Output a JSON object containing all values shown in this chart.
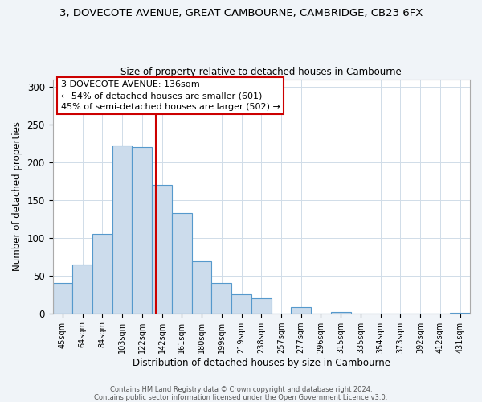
{
  "title_line1": "3, DOVECOTE AVENUE, GREAT CAMBOURNE, CAMBRIDGE, CB23 6FX",
  "title_line2": "Size of property relative to detached houses in Cambourne",
  "bar_labels": [
    "45sqm",
    "64sqm",
    "84sqm",
    "103sqm",
    "122sqm",
    "142sqm",
    "161sqm",
    "180sqm",
    "199sqm",
    "219sqm",
    "238sqm",
    "257sqm",
    "277sqm",
    "296sqm",
    "315sqm",
    "335sqm",
    "354sqm",
    "373sqm",
    "392sqm",
    "412sqm",
    "431sqm"
  ],
  "bar_values": [
    40,
    65,
    105,
    222,
    220,
    170,
    133,
    69,
    40,
    25,
    20,
    0,
    8,
    0,
    2,
    0,
    0,
    0,
    0,
    0,
    1
  ],
  "bar_color": "#ccdcec",
  "bar_edgecolor": "#5599cc",
  "xlabel": "Distribution of detached houses by size in Cambourne",
  "ylabel": "Number of detached properties",
  "ylim": [
    0,
    310
  ],
  "yticks": [
    0,
    50,
    100,
    150,
    200,
    250,
    300
  ],
  "vline_color": "#cc0000",
  "annotation_text_line1": "3 DOVECOTE AVENUE: 136sqm",
  "annotation_text_line2": "← 54% of detached houses are smaller (601)",
  "annotation_text_line3": "45% of semi-detached houses are larger (502) →",
  "annotation_box_edgecolor": "#cc0000",
  "footer_line1": "Contains HM Land Registry data © Crown copyright and database right 2024.",
  "footer_line2": "Contains public sector information licensed under the Open Government Licence v3.0.",
  "bg_color": "#f0f4f8",
  "plot_bg_color": "#ffffff",
  "grid_color": "#d0dce8"
}
